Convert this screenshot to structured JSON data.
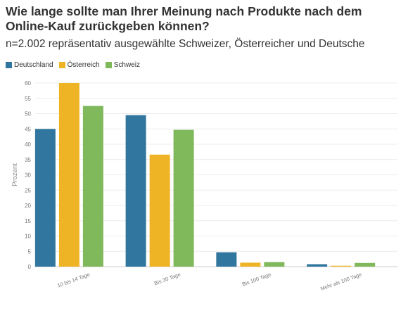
{
  "title": "Wie lange sollte man Ihrer Meinung nach Produkte nach dem Online-Kauf zurückgeben können?",
  "subtitle": "n=2.002 repräsentativ ausgewählte Schweizer, Österreicher und Deutsche",
  "colors": {
    "Deutschland": "#31769f",
    "Österreich": "#efb425",
    "Schweiz": "#80b85c"
  },
  "chart_data": {
    "type": "bar",
    "categories": [
      "10 bis 14 Tage",
      "Bis 30 Tage",
      "Bis 100 Tage",
      "Mehr als 100 Tage"
    ],
    "series": [
      {
        "name": "Deutschland",
        "values": [
          45.0,
          49.5,
          4.7,
          0.8
        ]
      },
      {
        "name": "Österreich",
        "values": [
          60.0,
          36.6,
          1.3,
          0.3
        ]
      },
      {
        "name": "Schweiz",
        "values": [
          52.5,
          44.7,
          1.5,
          1.2
        ]
      }
    ],
    "ylabel": "Prozent",
    "ylim": [
      0,
      60
    ],
    "yticks": [
      0,
      5,
      10,
      15,
      20,
      25,
      30,
      35,
      40,
      45,
      50,
      55,
      60
    ],
    "grid": true,
    "legend": "top-left"
  }
}
